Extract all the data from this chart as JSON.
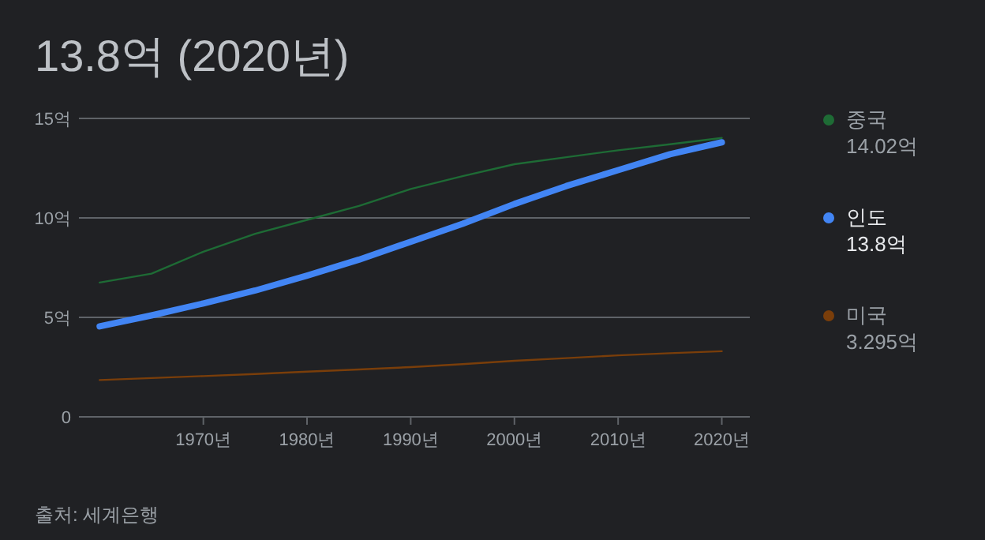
{
  "chart_data": {
    "type": "line",
    "title": "13.8억 (2020년)",
    "xlim": [
      1958,
      2022.7
    ],
    "xticks": [
      {
        "value": 1970,
        "label": "1970년"
      },
      {
        "value": 1980,
        "label": "1980년"
      },
      {
        "value": 1990,
        "label": "1990년"
      },
      {
        "value": 2000,
        "label": "2000년"
      },
      {
        "value": 2010,
        "label": "2010년"
      },
      {
        "value": 2020,
        "label": "2020년"
      }
    ],
    "ylim": [
      0,
      15
    ],
    "yticks": [
      0,
      {
        "value": 5,
        "label": "5억"
      },
      {
        "value": 10,
        "label": "10억"
      },
      {
        "value": 15,
        "label": "15억"
      }
    ],
    "grid": "y",
    "legend": "right",
    "x": [
      1960,
      1965,
      1970,
      1975,
      1980,
      1985,
      1990,
      1995,
      2000,
      2005,
      2010,
      2015,
      2020
    ],
    "series": [
      {
        "name": "중국",
        "color": "#1e6b35",
        "values": [
          6.75,
          7.2,
          8.3,
          9.2,
          9.9,
          10.6,
          11.45,
          12.1,
          12.7,
          13.05,
          13.4,
          13.7,
          14.02
        ]
      },
      {
        "name": "인도",
        "color": "#4285f4",
        "values": [
          4.55,
          5.1,
          5.7,
          6.35,
          7.1,
          7.9,
          8.8,
          9.7,
          10.7,
          11.6,
          12.4,
          13.2,
          13.8
        ]
      },
      {
        "name": "미국",
        "color": "#7a3e0a",
        "values": [
          1.85,
          1.95,
          2.05,
          2.15,
          2.27,
          2.38,
          2.5,
          2.65,
          2.82,
          2.95,
          3.09,
          3.2,
          3.3
        ]
      }
    ],
    "annotations": [
      "14.02억",
      "13.8억",
      "3.295억",
      "출처: 세계은행"
    ]
  }
}
